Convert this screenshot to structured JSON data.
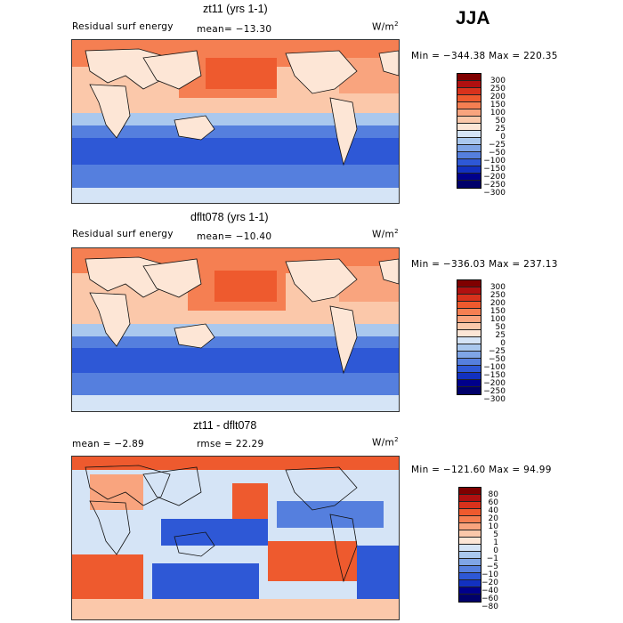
{
  "season": "JJA",
  "units_base": "W/m",
  "units_exp": "2",
  "panels": [
    {
      "title": "zt11 (yrs 1-1)",
      "field": "Residual surf energy",
      "stat": "mean= −13.30",
      "minmax": "Min = −344.38  Max =  220.35",
      "levels": [
        "300",
        "250",
        "200",
        "150",
        "100",
        "50",
        "25",
        "0",
        "−25",
        "−50",
        "−100",
        "−150",
        "−200",
        "−250",
        "−300"
      ]
    },
    {
      "title": "dflt078 (yrs 1-1)",
      "field": "Residual surf energy",
      "stat": "mean= −10.40",
      "minmax": "Min = −336.03  Max =  237.13",
      "levels": [
        "300",
        "250",
        "200",
        "150",
        "100",
        "50",
        "25",
        "0",
        "−25",
        "−50",
        "−100",
        "−150",
        "−200",
        "−250",
        "−300"
      ]
    },
    {
      "title": "zt11 - dflt078",
      "stat1": "mean =   −2.89",
      "stat2": "rmse =   22.29",
      "minmax": "Min = −121.60  Max =   94.99",
      "levels": [
        "80",
        "60",
        "40",
        "20",
        "10",
        "5",
        "1",
        "0",
        "−1",
        "−5",
        "−10",
        "−20",
        "−40",
        "−60",
        "−80"
      ]
    }
  ],
  "colors": {
    "scale": [
      "#7f0000",
      "#b01010",
      "#d8321c",
      "#ee5a2e",
      "#f57f52",
      "#f9a47e",
      "#fbc8aa",
      "#fde6d6",
      "#d5e4f6",
      "#aac8ee",
      "#7fa5e6",
      "#557fde",
      "#2e58d6",
      "#1231c0",
      "#00008b"
    ],
    "land": "#fde9dc",
    "ocean_mid": "#fbc8aa",
    "ocean_south": "#557fde"
  }
}
